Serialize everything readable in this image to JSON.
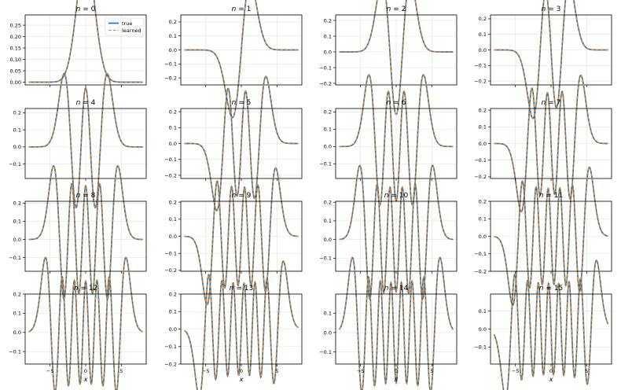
{
  "chart_data": [
    {
      "type": "line",
      "title": "$n = 0$",
      "title_parts": {
        "var": "n",
        "eq": " = ",
        "num": "0"
      },
      "n": 0,
      "xlim": [
        -8.5,
        8.5
      ],
      "ylim": [
        -0.012,
        0.295
      ],
      "yticks": [
        0.0,
        0.05,
        0.1,
        0.15,
        0.2,
        0.25
      ],
      "yticklabels": [
        "0.00",
        "0.05",
        "0.10",
        "0.15",
        "0.20",
        "0.25"
      ],
      "legend": {
        "position": "top-right",
        "entries": [
          {
            "label": "true",
            "color": "#1f77b4",
            "style": "solid"
          },
          {
            "label": "learned",
            "color": "#ff7f0e",
            "style": "dashed"
          }
        ]
      },
      "series": [
        {
          "name": "true",
          "color": "#1f77b4"
        },
        {
          "name": "learned",
          "color": "#ff7f0e"
        }
      ]
    },
    {
      "type": "line",
      "title": "$n = 1$",
      "title_parts": {
        "var": "n",
        "eq": " = ",
        "num": "1"
      },
      "n": 1,
      "xlim": [
        -8.5,
        8.5
      ],
      "ylim": [
        -0.25,
        0.25
      ],
      "yticks": [
        -0.2,
        -0.1,
        0.0,
        0.1,
        0.2
      ],
      "yticklabels": [
        "−0.2",
        "−0.1",
        "0.0",
        "0.1",
        "0.2"
      ]
    },
    {
      "type": "line",
      "title": "$n = 2$",
      "title_parts": {
        "var": "n",
        "eq": " = ",
        "num": "2"
      },
      "n": 2,
      "xlim": [
        -8.5,
        8.5
      ],
      "ylim": [
        -0.21,
        0.235
      ],
      "yticks": [
        -0.2,
        -0.1,
        0.0,
        0.1,
        0.2
      ],
      "yticklabels": [
        "−0.2",
        "−0.1",
        "0.0",
        "0.1",
        "0.2"
      ]
    },
    {
      "type": "line",
      "title": "$n = 3$",
      "title_parts": {
        "var": "n",
        "eq": " = ",
        "num": "3"
      },
      "n": 3,
      "xlim": [
        -8.5,
        8.5
      ],
      "ylim": [
        -0.225,
        0.225
      ],
      "yticks": [
        -0.2,
        -0.1,
        0.0,
        0.1,
        0.2
      ],
      "yticklabels": [
        "−0.2",
        "−0.1",
        "0.0",
        "0.1",
        "0.2"
      ]
    },
    {
      "type": "line",
      "title": "$n = 4$",
      "title_parts": {
        "var": "n",
        "eq": " = ",
        "num": "4"
      },
      "n": 4,
      "xlim": [
        -8.5,
        8.5
      ],
      "ylim": [
        -0.185,
        0.225
      ],
      "yticks": [
        -0.1,
        0.0,
        0.1,
        0.2
      ],
      "yticklabels": [
        "−0.1",
        "0.0",
        "0.1",
        "0.2"
      ]
    },
    {
      "type": "line",
      "title": "$n = 5$",
      "title_parts": {
        "var": "n",
        "eq": " = ",
        "num": "5"
      },
      "n": 5,
      "xlim": [
        -8.5,
        8.5
      ],
      "ylim": [
        -0.22,
        0.22
      ],
      "yticks": [
        -0.2,
        -0.1,
        0.0,
        0.1,
        0.2
      ],
      "yticklabels": [
        "−0.2",
        "−0.1",
        "0.0",
        "0.1",
        "0.2"
      ]
    },
    {
      "type": "line",
      "title": "$n = 6$",
      "title_parts": {
        "var": "n",
        "eq": " = ",
        "num": "6"
      },
      "n": 6,
      "xlim": [
        -8.5,
        8.5
      ],
      "ylim": [
        -0.185,
        0.22
      ],
      "yticks": [
        -0.1,
        0.0,
        0.1,
        0.2
      ],
      "yticklabels": [
        "−0.1",
        "0.0",
        "0.1",
        "0.2"
      ]
    },
    {
      "type": "line",
      "title": "$n = 7$",
      "title_parts": {
        "var": "n",
        "eq": " = ",
        "num": "7"
      },
      "n": 7,
      "xlim": [
        -8.5,
        8.5
      ],
      "ylim": [
        -0.21,
        0.21
      ],
      "yticks": [
        -0.2,
        -0.1,
        0.0,
        0.1,
        0.2
      ],
      "yticklabels": [
        "−0.2",
        "−0.1",
        "0.0",
        "0.1",
        "0.2"
      ]
    },
    {
      "type": "line",
      "title": "$n = 8$",
      "title_parts": {
        "var": "n",
        "eq": " = ",
        "num": "8"
      },
      "n": 8,
      "xlim": [
        -8.5,
        8.5
      ],
      "ylim": [
        -0.175,
        0.21
      ],
      "yticks": [
        -0.1,
        0.0,
        0.1,
        0.2
      ],
      "yticklabels": [
        "−0.1",
        "0.0",
        "0.1",
        "0.2"
      ]
    },
    {
      "type": "line",
      "title": "$n = 9$",
      "title_parts": {
        "var": "n",
        "eq": " = ",
        "num": "9"
      },
      "n": 9,
      "xlim": [
        -8.5,
        8.5
      ],
      "ylim": [
        -0.205,
        0.205
      ],
      "yticks": [
        -0.2,
        -0.1,
        0.0,
        0.1,
        0.2
      ],
      "yticklabels": [
        "−0.2",
        "−0.1",
        "0.0",
        "0.1",
        "0.2"
      ]
    },
    {
      "type": "line",
      "title": "$n = 10$",
      "title_parts": {
        "var": "n",
        "eq": " = ",
        "num": "10"
      },
      "n": 10,
      "xlim": [
        -8.5,
        8.5
      ],
      "ylim": [
        -0.17,
        0.205
      ],
      "yticks": [
        -0.1,
        0.0,
        0.1,
        0.2
      ],
      "yticklabels": [
        "−0.1",
        "0.0",
        "0.1",
        "0.2"
      ]
    },
    {
      "type": "line",
      "title": "$n = 11$",
      "title_parts": {
        "var": "n",
        "eq": " = ",
        "num": "11"
      },
      "n": 11,
      "xlim": [
        -8.5,
        8.5
      ],
      "ylim": [
        -0.2,
        0.2
      ],
      "yticks": [
        -0.2,
        -0.1,
        0.0,
        0.1,
        0.2
      ],
      "yticklabels": [
        "−0.2",
        "−0.1",
        "0.0",
        "0.1",
        "0.2"
      ]
    },
    {
      "type": "line",
      "title": "$n = 12$",
      "title_parts": {
        "var": "n",
        "eq": " = ",
        "num": "12"
      },
      "n": 12,
      "xlim": [
        -8.5,
        8.5
      ],
      "ylim": [
        -0.165,
        0.2
      ],
      "yticks": [
        -0.1,
        0.0,
        0.1,
        0.2
      ],
      "yticklabels": [
        "−0.1",
        "0.0",
        "0.1",
        "0.2"
      ],
      "xticks": [
        -5,
        0,
        5
      ],
      "xticklabels": [
        "−5",
        "0",
        "5"
      ],
      "xlabel": "x"
    },
    {
      "type": "line",
      "title": "$n = 13$",
      "title_parts": {
        "var": "n",
        "eq": " = ",
        "num": "13"
      },
      "n": 13,
      "xlim": [
        -8.5,
        8.5
      ],
      "ylim": [
        -0.2,
        0.2
      ],
      "yticks": [
        -0.2,
        -0.1,
        0.0,
        0.1,
        0.2
      ],
      "yticklabels": [
        "−0.2",
        "−0.1",
        "0.0",
        "0.1",
        "0.2"
      ],
      "xticks": [
        -5,
        0,
        5
      ],
      "xticklabels": [
        "−5",
        "0",
        "5"
      ],
      "xlabel": "x"
    },
    {
      "type": "line",
      "title": "$n = 14$",
      "title_parts": {
        "var": "n",
        "eq": " = ",
        "num": "14"
      },
      "n": 14,
      "xlim": [
        -8.5,
        8.5
      ],
      "ylim": [
        -0.162,
        0.198
      ],
      "yticks": [
        -0.1,
        0.0,
        0.1
      ],
      "yticklabels": [
        "−0.1",
        "0.0",
        "0.1"
      ],
      "xticks": [
        -5,
        0,
        5
      ],
      "xticklabels": [
        "−5",
        "0",
        "5"
      ],
      "xlabel": "x"
    },
    {
      "type": "line",
      "title": "$n = 15$",
      "title_parts": {
        "var": "n",
        "eq": " = ",
        "num": "15"
      },
      "n": 15,
      "xlim": [
        -8.5,
        8.5
      ],
      "ylim": [
        -0.195,
        0.195
      ],
      "yticks": [
        -0.1,
        0.0,
        0.1
      ],
      "yticklabels": [
        "−0.1",
        "0.0",
        "0.1"
      ],
      "xticks": [
        -5,
        0,
        5
      ],
      "xticklabels": [
        "−5",
        "0",
        "5"
      ],
      "xlabel": "x"
    }
  ],
  "colors": {
    "true": "#1f77b4",
    "learned": "#ff7f0e",
    "grid": "#e3e3e3"
  },
  "shared": {
    "xticks": [
      -5,
      0,
      5
    ],
    "xlim": [
      -8.5,
      8.5
    ],
    "x_range_of_curves": [
      -8,
      8
    ]
  }
}
